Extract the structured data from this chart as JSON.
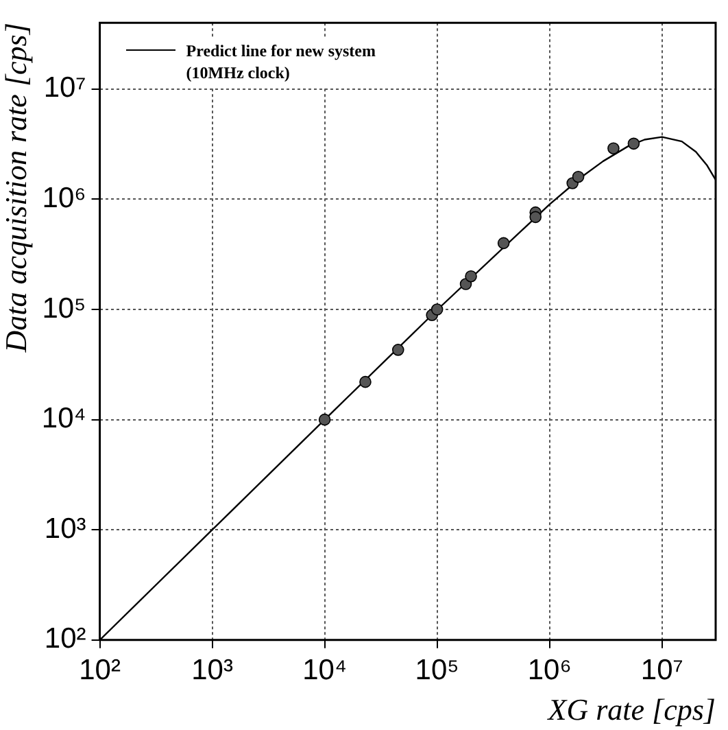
{
  "chart_data": {
    "type": "scatter",
    "xlabel": "XG rate [cps]",
    "ylabel": "Data acquisition rate [cps]",
    "log": "xy",
    "grid": true,
    "legend": "top left",
    "xlim": [
      100,
      30000000
    ],
    "ylim": [
      100,
      40000000
    ],
    "xticks": [
      {
        "value": 100,
        "label": "10²"
      },
      {
        "value": 1000,
        "label": "10³"
      },
      {
        "value": 10000,
        "label": "10⁴"
      },
      {
        "value": 100000,
        "label": "10⁵"
      },
      {
        "value": 1000000,
        "label": "10⁶"
      },
      {
        "value": 10000000,
        "label": "10⁷"
      }
    ],
    "yticks": [
      {
        "value": 100,
        "label": "10²"
      },
      {
        "value": 1000,
        "label": "10³"
      },
      {
        "value": 10000,
        "label": "10⁴"
      },
      {
        "value": 100000,
        "label": "10⁵"
      },
      {
        "value": 1000000,
        "label": "10⁶"
      },
      {
        "value": 10000000,
        "label": "10⁷"
      }
    ],
    "series": [
      {
        "type": "line",
        "name": "Predict line for new system (10MHz clock)",
        "color": "#000000",
        "marker": "none",
        "x": [
          100,
          1000,
          10000,
          100000,
          1000000,
          2000000,
          3000000,
          5000000,
          7000000,
          10000000,
          15000000,
          20000000,
          25000000,
          30000000
        ],
        "values": [
          100,
          1000,
          10000,
          99000,
          900000,
          1640000,
          2220000,
          3030000,
          3480000,
          3680000,
          3350000,
          2700000,
          2050000,
          1500000
        ]
      },
      {
        "color": "#555555",
        "marker": "circle",
        "x": [
          10000,
          23000,
          45000,
          90000,
          100000,
          180000,
          200000,
          390000,
          750000,
          750000,
          1600000,
          1800000,
          3700000,
          5600000
        ],
        "values": [
          10000,
          22000,
          43000,
          89000,
          100000,
          170000,
          200000,
          400000,
          760000,
          690000,
          1400000,
          1600000,
          2900000,
          3200000
        ]
      }
    ]
  }
}
